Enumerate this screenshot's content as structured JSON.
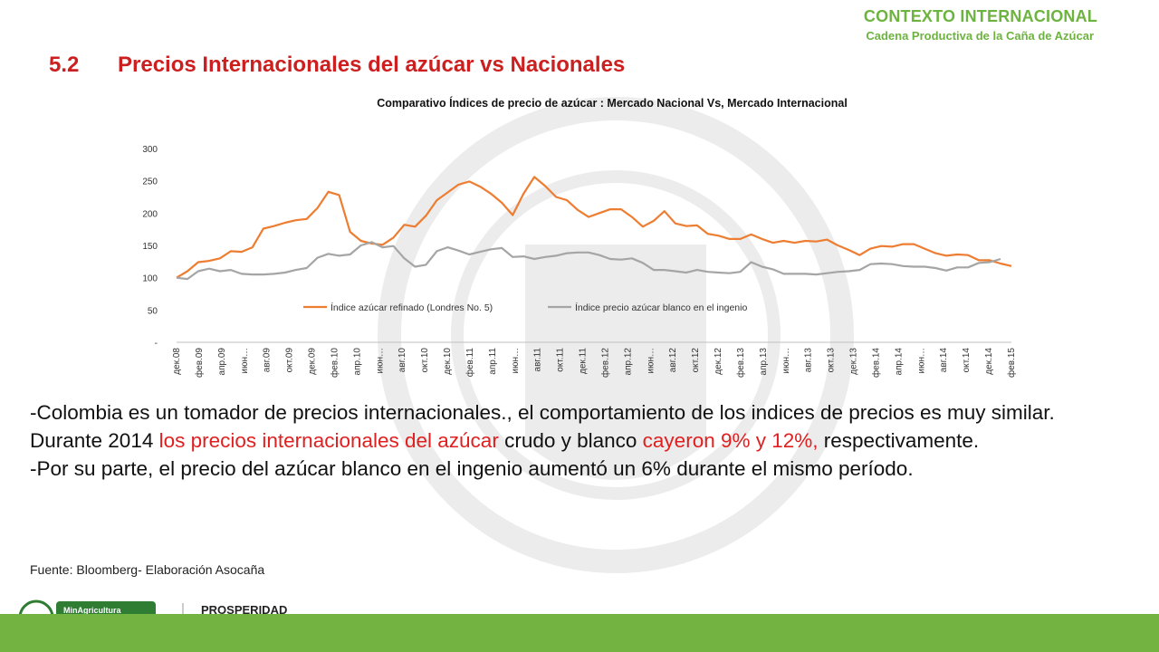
{
  "header": {
    "title": "CONTEXTO INTERNACIONAL",
    "subtitle": "Cadena Productiva de la Caña de Azúcar"
  },
  "section": {
    "number": "5.2",
    "title": "Precios Internacionales del azúcar vs Nacionales"
  },
  "colors": {
    "accent_green": "#72b341",
    "title_red": "#cc1f1f",
    "highlight_red": "#e02020",
    "series_orange": "#ed7d31",
    "series_gray": "#a5a5a5"
  },
  "chart_data": {
    "type": "line",
    "title": "Comparativo Índices de precio de azúcar : Mercado Nacional Vs, Mercado Internacional",
    "ylim": [
      0,
      300
    ],
    "y_ticks": [
      "-",
      "50",
      "100",
      "150",
      "200",
      "250",
      "300"
    ],
    "tick_labels": [
      "дек.08",
      "фев.09",
      "апр.09",
      "июн…",
      "авг.09",
      "окт.09",
      "дек.09",
      "фев.10",
      "апр.10",
      "июн…",
      "авг.10",
      "окт.10",
      "дек.10",
      "фев.11",
      "апр.11",
      "июн…",
      "авг.11",
      "окт.11",
      "дек.11",
      "фев.12",
      "апр.12",
      "июн…",
      "авг.12",
      "окт.12",
      "дек.12",
      "фев.13",
      "апр.13",
      "июн…",
      "авг.13",
      "окт.13",
      "дек.13",
      "фев.14",
      "апр.14",
      "июн…",
      "авг.14",
      "окт.14",
      "дек.14",
      "фев.15"
    ],
    "legend_position": "inside-bottom",
    "series": [
      {
        "name": "Índice azúcar refinado (Londres No. 5)",
        "color": "#ed7d31",
        "values": [
          100,
          110,
          124,
          126,
          130,
          141,
          140,
          147,
          176,
          180,
          185,
          189,
          191,
          208,
          233,
          228,
          171,
          157,
          153,
          151,
          162,
          182,
          179,
          196,
          220,
          232,
          244,
          249,
          241,
          230,
          216,
          197,
          230,
          256,
          242,
          225,
          220,
          205,
          194,
          200,
          206,
          206,
          194,
          179,
          188,
          203,
          184,
          180,
          181,
          168,
          165,
          160,
          160,
          167,
          160,
          154,
          157,
          154,
          157,
          156,
          159,
          150,
          143,
          135,
          145,
          149,
          148,
          152,
          152,
          145,
          138,
          134,
          136,
          135,
          127,
          127,
          122,
          118
        ]
      },
      {
        "name": "Índice precio azúcar blanco en el ingenio",
        "color": "#a5a5a5",
        "values": [
          100,
          98,
          110,
          114,
          110,
          112,
          106,
          105,
          105,
          106,
          108,
          112,
          115,
          131,
          137,
          134,
          136,
          150,
          155,
          147,
          149,
          130,
          117,
          120,
          141,
          147,
          142,
          136,
          140,
          144,
          146,
          132,
          133,
          129,
          132,
          134,
          138,
          139,
          139,
          135,
          129,
          128,
          130,
          123,
          112,
          112,
          110,
          108,
          112,
          109,
          108,
          107,
          109,
          124,
          117,
          113,
          106,
          106,
          106,
          105,
          107,
          109,
          110,
          112,
          121,
          122,
          121,
          118,
          117,
          117,
          115,
          111,
          116,
          116,
          123,
          124,
          129
        ]
      }
    ]
  },
  "body": {
    "line1": "-Colombia es un tomador de precios internacionales., el comportamiento de los indices de precios es muy similar.",
    "line2_a": "Durante 2014 ",
    "line2_b": "los precios internacionales del azúcar",
    "line2_c": " crudo y blanco ",
    "line2_d": "cayeron 9% y 12%,",
    "line2_e": " respectivamente.",
    "line3": "-Por su parte, el precio del azúcar blanco en el ingenio aumentó un 6% durante el mismo período."
  },
  "source": "Fuente: Bloomberg- Elaboración Asocaña",
  "footer": {
    "logo1": "MinAgricultura",
    "logo2": "PROSPERIDAD"
  }
}
